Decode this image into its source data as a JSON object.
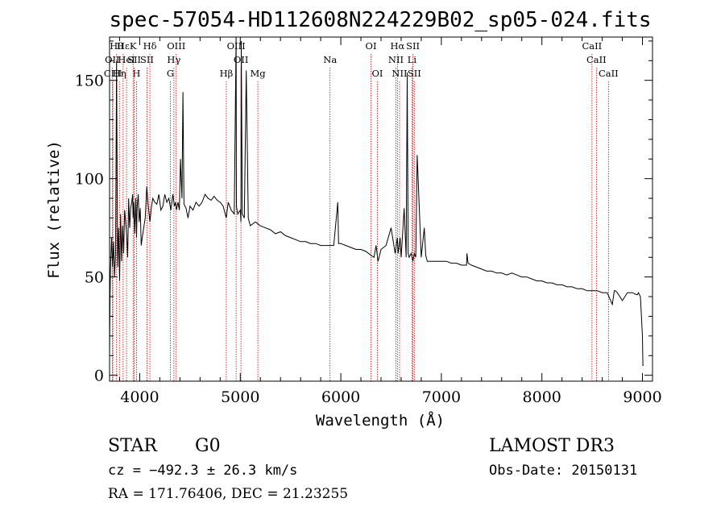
{
  "chart_data": {
    "type": "line",
    "title": "spec-57054-HD112608N224229B02_sp05-024.fits",
    "xlabel": "Wavelength (Å)",
    "ylabel": "Flux (relative)",
    "xlim": [
      3700,
      9100
    ],
    "ylim": [
      -3,
      172
    ],
    "xticks": [
      4000,
      5000,
      6000,
      7000,
      8000,
      9000
    ],
    "yticks": [
      0,
      50,
      100,
      150
    ],
    "xtick_labels": [
      "4000",
      "5000",
      "6000",
      "7000",
      "8000",
      "9000"
    ],
    "ytick_labels": [
      "0",
      "50",
      "100",
      "150"
    ],
    "grid": false,
    "series": [
      {
        "name": "spectrum",
        "x": [
          3700,
          3705,
          3710,
          3720,
          3730,
          3740,
          3750,
          3760,
          3770,
          3780,
          3790,
          3800,
          3810,
          3820,
          3830,
          3840,
          3850,
          3860,
          3870,
          3880,
          3890,
          3900,
          3910,
          3920,
          3930,
          3934,
          3940,
          3950,
          3960,
          3968,
          3975,
          3985,
          3995,
          4005,
          4015,
          4025,
          4040,
          4055,
          4070,
          4085,
          4101,
          4115,
          4130,
          4150,
          4170,
          4190,
          4210,
          4230,
          4250,
          4270,
          4290,
          4310,
          4330,
          4345,
          4355,
          4365,
          4380,
          4395,
          4405,
          4420,
          4430,
          4440,
          4460,
          4480,
          4500,
          4530,
          4560,
          4590,
          4620,
          4650,
          4680,
          4710,
          4740,
          4770,
          4800,
          4830,
          4861,
          4880,
          4910,
          4940,
          4959,
          4962,
          4975,
          5000,
          5007,
          5010,
          5020,
          5040,
          5060,
          5080,
          5100,
          5150,
          5200,
          5250,
          5300,
          5350,
          5400,
          5450,
          5500,
          5550,
          5600,
          5650,
          5700,
          5750,
          5800,
          5850,
          5890,
          5930,
          5970,
          5978,
          5985,
          6000,
          6050,
          6100,
          6150,
          6200,
          6250,
          6300,
          6330,
          6350,
          6370,
          6400,
          6450,
          6500,
          6540,
          6563,
          6570,
          6590,
          6600,
          6630,
          6650,
          6660,
          6670,
          6680,
          6700,
          6717,
          6731,
          6745,
          6760,
          6780,
          6800,
          6830,
          6845,
          6860,
          6900,
          6950,
          7000,
          7050,
          7100,
          7150,
          7200,
          7250,
          7255,
          7265,
          7300,
          7350,
          7400,
          7450,
          7500,
          7550,
          7600,
          7650,
          7700,
          7750,
          7800,
          7850,
          7900,
          7950,
          8000,
          8050,
          8100,
          8150,
          8200,
          8250,
          8300,
          8350,
          8400,
          8450,
          8500,
          8550,
          8600,
          8650,
          8700,
          8720,
          8730,
          8750,
          8800,
          8850,
          8900,
          8940,
          8950,
          8960,
          8980,
          9000,
          9005,
          9010
        ],
        "y": [
          10,
          40,
          55,
          70,
          55,
          68,
          50,
          62,
          160,
          55,
          75,
          48,
          82,
          58,
          76,
          62,
          84,
          78,
          72,
          60,
          90,
          75,
          85,
          88,
          92,
          80,
          88,
          72,
          90,
          70,
          86,
          92,
          78,
          85,
          66,
          70,
          75,
          80,
          96,
          86,
          78,
          85,
          90,
          88,
          87,
          92,
          84,
          86,
          92,
          88,
          90,
          84,
          92,
          86,
          88,
          84,
          88,
          84,
          110,
          90,
          144,
          87,
          85,
          80,
          86,
          84,
          88,
          86,
          88,
          92,
          90,
          89,
          91,
          89,
          88,
          86,
          80,
          88,
          84,
          82,
          175,
          86,
          82,
          84,
          78,
          170,
          82,
          80,
          155,
          80,
          76,
          78,
          76,
          75,
          74,
          72,
          73,
          71,
          70,
          69,
          68,
          68,
          67,
          67,
          66,
          66,
          66,
          66,
          88,
          67,
          67,
          67,
          66,
          65,
          64,
          64,
          63,
          61,
          60,
          66,
          58,
          64,
          66,
          75,
          62,
          70,
          62,
          70,
          60,
          85,
          60,
          154,
          62,
          60,
          62,
          58,
          62,
          60,
          112,
          86,
          60,
          75,
          61,
          58,
          58,
          58,
          58,
          58,
          57,
          57,
          56,
          56,
          62,
          57,
          56,
          55,
          54,
          53,
          53,
          52,
          52,
          51,
          52,
          51,
          50,
          50,
          49,
          48,
          48,
          47,
          47,
          46,
          46,
          45,
          45,
          44,
          44,
          43,
          43,
          43,
          42,
          42,
          36,
          43,
          43,
          42,
          38,
          42,
          42,
          41,
          41,
          42,
          40,
          20,
          5,
          5
        ]
      }
    ],
    "lines": [
      {
        "x": 3770,
        "label": "Hθ",
        "row": 0
      },
      {
        "x": 3798,
        "label": "Hη",
        "row": 2
      },
      {
        "x": 3727,
        "label": "OII",
        "row": 1
      },
      {
        "x": 3733,
        "label": "CIII",
        "row": 2
      },
      {
        "x": 3835,
        "label": "Hε",
        "row": 0
      },
      {
        "x": 3869,
        "label": "HeI",
        "row": 1
      },
      {
        "x": 3934,
        "label": "K",
        "row": 0
      },
      {
        "x": 3968,
        "label": "H",
        "row": 2
      },
      {
        "x": 3945,
        "label": "SII",
        "row": 1
      },
      {
        "x": 4101,
        "label": "Hδ",
        "row": 0
      },
      {
        "x": 4072,
        "label": "SII",
        "row": 1
      },
      {
        "x": 4340,
        "label": "Hγ",
        "row": 1
      },
      {
        "x": 4363,
        "label": "OIII",
        "row": 0
      },
      {
        "x": 4305,
        "label": "G",
        "row": 2
      },
      {
        "x": 4861,
        "label": "Hβ",
        "row": 2
      },
      {
        "x": 4959,
        "label": "OIII",
        "row": 0
      },
      {
        "x": 5007,
        "label": "OII",
        "row": 1
      },
      {
        "x": 5175,
        "label": "Mg",
        "row": 2
      },
      {
        "x": 5893,
        "label": "Na",
        "row": 1
      },
      {
        "x": 6300,
        "label": "OI",
        "row": 0
      },
      {
        "x": 6364,
        "label": "OI",
        "row": 2
      },
      {
        "x": 6563,
        "label": "Hα",
        "row": 0
      },
      {
        "x": 6548,
        "label": "NII",
        "row": 1
      },
      {
        "x": 6584,
        "label": "NII",
        "row": 2
      },
      {
        "x": 6708,
        "label": "Li",
        "row": 1
      },
      {
        "x": 6717,
        "label": "SII",
        "row": 0
      },
      {
        "x": 6731,
        "label": "SII",
        "row": 2
      },
      {
        "x": 8498,
        "label": "CaII",
        "row": 0
      },
      {
        "x": 8542,
        "label": "CaII",
        "row": 1
      },
      {
        "x": 8662,
        "label": "CaII",
        "row": 2
      }
    ]
  },
  "info": {
    "class": "STAR",
    "subclass": "G0",
    "survey": "LAMOST DR3",
    "cz": "cz = −492.3 ± 26.3 km/s",
    "obs_date": "Obs-Date: 20150131",
    "radec": "RA = 171.76406, DEC =  21.23255"
  },
  "colors": {
    "line_marker": "#cc0000",
    "spectrum": "#000000"
  }
}
